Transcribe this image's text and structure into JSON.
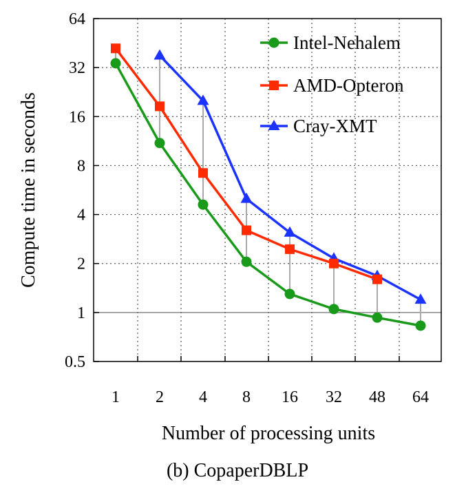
{
  "caption": "(b)  CopaperDBLP",
  "chart_data": {
    "type": "line",
    "title": "",
    "xlabel": "Number of processing units",
    "ylabel": "Compute time in seconds",
    "y_scale": "log2",
    "ylim": [
      0.5,
      64
    ],
    "y_ticks": [
      "0.5",
      "1",
      "2",
      "4",
      "8",
      "16",
      "32",
      "64"
    ],
    "x_categories": [
      "1",
      "2",
      "4",
      "8",
      "16",
      "32",
      "48",
      "64"
    ],
    "grid": true,
    "legend_position": "top-right",
    "series": [
      {
        "name": "Intel-Nehalem",
        "color": "#1a9a1a",
        "marker": "circle",
        "values": [
          34,
          11,
          4.6,
          2.05,
          1.3,
          1.05,
          0.93,
          0.83
        ]
      },
      {
        "name": "AMD-Opteron",
        "color": "#ff2a00",
        "marker": "square",
        "values": [
          42,
          18.5,
          7.2,
          3.2,
          2.45,
          2.0,
          1.6,
          null
        ]
      },
      {
        "name": "Cray-XMT",
        "color": "#1a33ff",
        "marker": "triangle",
        "values": [
          null,
          38,
          20,
          5.0,
          3.1,
          2.15,
          1.68,
          1.2
        ]
      }
    ]
  }
}
